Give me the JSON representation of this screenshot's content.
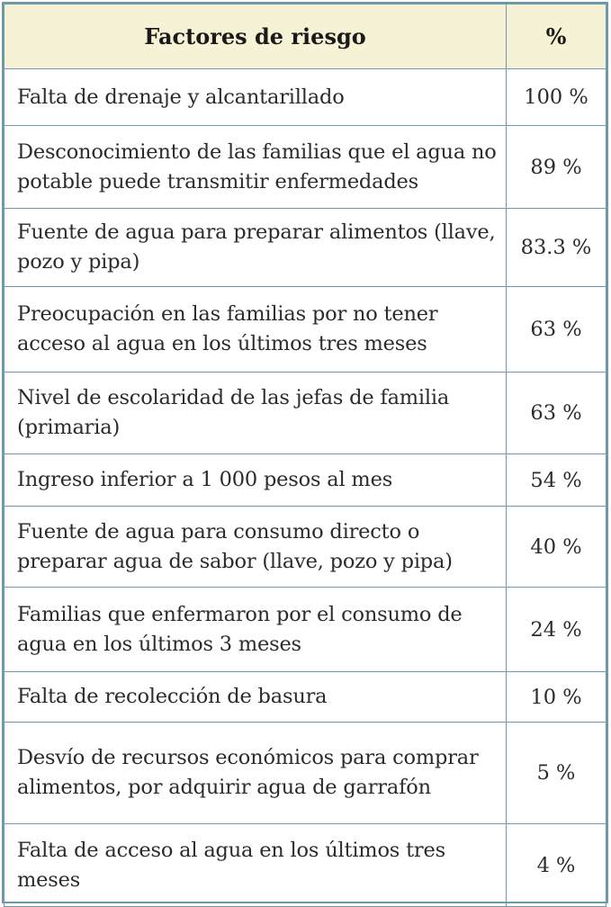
{
  "table": {
    "header": {
      "factor": "Factores de riesgo",
      "percent": "%"
    },
    "rows": [
      {
        "factor": "Falta de drenaje y alcantarillado",
        "percent": "100 %"
      },
      {
        "factor": "Desconocimiento de las familias que el agua no potable puede transmitir enfermedades",
        "percent": "89 %"
      },
      {
        "factor": "Fuente de agua para preparar alimentos (llave, pozo y pipa)",
        "percent": "83.3 %"
      },
      {
        "factor": "Preocupación en las familias por no tener acceso al  agua en los últimos tres meses",
        "percent": "63 %"
      },
      {
        "factor": "Nivel de escolaridad de las jefas de familia (primaria)",
        "percent": "63 %"
      },
      {
        "factor": "Ingreso inferior a 1 000 pesos al mes",
        "percent": "54 %"
      },
      {
        "factor": "Fuente de agua para consumo directo o preparar agua de sabor (llave, pozo y pipa)",
        "percent": "40 %"
      },
      {
        "factor": "Familias que enfermaron por el consumo de agua en los últimos 3 meses",
        "percent": "24 %"
      },
      {
        "factor": "Falta de recolección de basura",
        "percent": "10 %"
      },
      {
        "factor": "Desvío de recursos económicos para comprar alimentos, por adquirir agua de garrafón",
        "percent": "5 %"
      },
      {
        "factor": "Falta de acceso al  agua en los últimos tres meses",
        "percent": "4 %"
      }
    ]
  },
  "colors": {
    "border": "#6e99ad",
    "header_bg": "#f6f2d6",
    "text": "#2b2b2b"
  }
}
